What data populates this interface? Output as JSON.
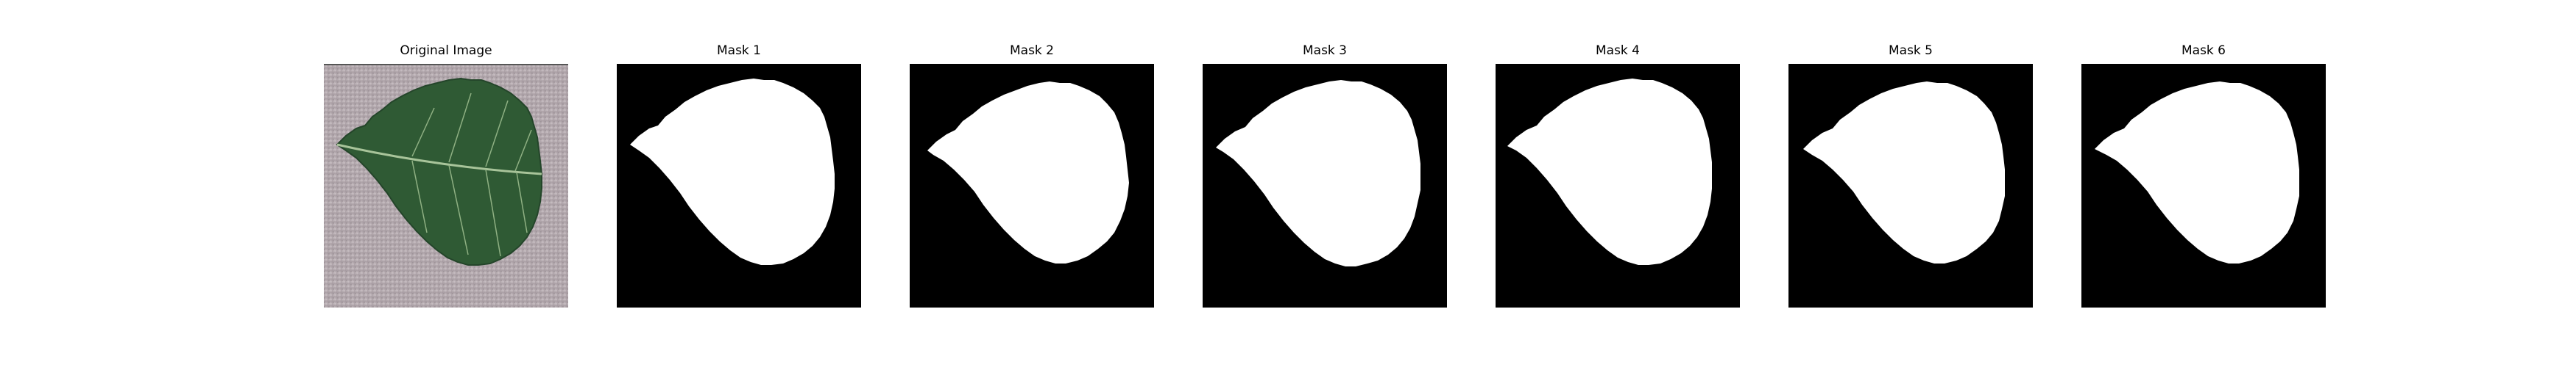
{
  "figure": {
    "panels": [
      {
        "title": "Original Image",
        "kind": "photo"
      },
      {
        "title": "Mask 1",
        "kind": "mask"
      },
      {
        "title": "Mask 2",
        "kind": "mask"
      },
      {
        "title": "Mask 3",
        "kind": "mask"
      },
      {
        "title": "Mask 4",
        "kind": "mask"
      },
      {
        "title": "Mask 5",
        "kind": "mask"
      },
      {
        "title": "Mask 6",
        "kind": "mask"
      }
    ],
    "colors": {
      "mask_background": "#000000",
      "mask_foreground": "#ffffff",
      "leaf": "#2f5a34",
      "leaf_vein": "#a8c49a",
      "photo_background": "#b9aeb3"
    }
  }
}
